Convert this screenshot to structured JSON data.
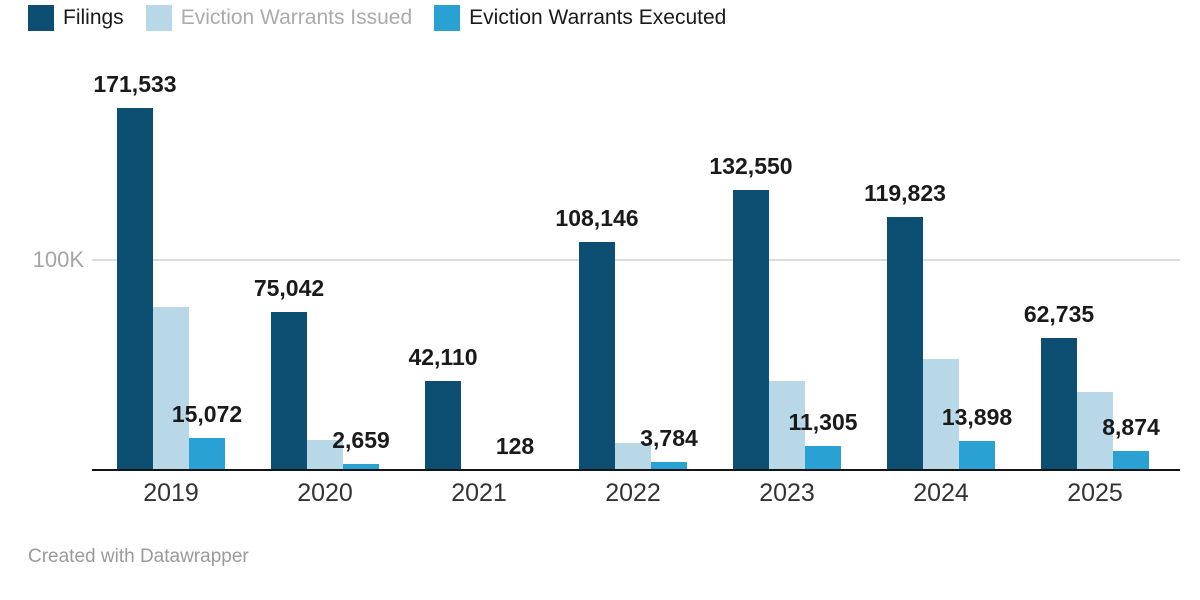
{
  "legend": {
    "items": [
      {
        "label": "Filings",
        "color": "#0d4e73",
        "label_color": "#1a1a1a"
      },
      {
        "label": "Eviction Warrants Issued",
        "color": "#b8d7e7",
        "label_color": "#ababab"
      },
      {
        "label": "Eviction Warrants Executed",
        "color": "#29a2d3",
        "label_color": "#1a1a1a"
      }
    ]
  },
  "chart_data": {
    "type": "bar",
    "categories": [
      "2019",
      "2020",
      "2021",
      "2022",
      "2023",
      "2024",
      "2025"
    ],
    "series": [
      {
        "name": "Filings",
        "color": "#0d4e73",
        "values": [
          171533,
          75042,
          42110,
          108146,
          132550,
          119823,
          62735
        ],
        "data_labels": [
          "171,533",
          "75,042",
          "42,110",
          "108,146",
          "132,550",
          "119,823",
          "62,735"
        ]
      },
      {
        "name": "Eviction Warrants Issued",
        "color": "#b8d7e7",
        "values": [
          77500,
          14100,
          0,
          12900,
          42000,
          52500,
          37000
        ],
        "data_labels": [
          null,
          null,
          null,
          null,
          null,
          null,
          null
        ]
      },
      {
        "name": "Eviction Warrants Executed",
        "color": "#29a2d3",
        "values": [
          15072,
          2659,
          128,
          3784,
          11305,
          13898,
          8874
        ],
        "data_labels": [
          "15,072",
          "2,659",
          "128",
          "3,784",
          "11,305",
          "13,898",
          "8,874"
        ]
      }
    ],
    "yaxis": {
      "ticks": [
        {
          "value": 100000,
          "label": "100K"
        }
      ],
      "range": [
        0,
        222000
      ]
    },
    "grid": "single horizontal gridline at 100K",
    "legend_position": "top-left",
    "xlabel": "",
    "ylabel": ""
  },
  "footer": {
    "credit": "Created with Datawrapper"
  }
}
